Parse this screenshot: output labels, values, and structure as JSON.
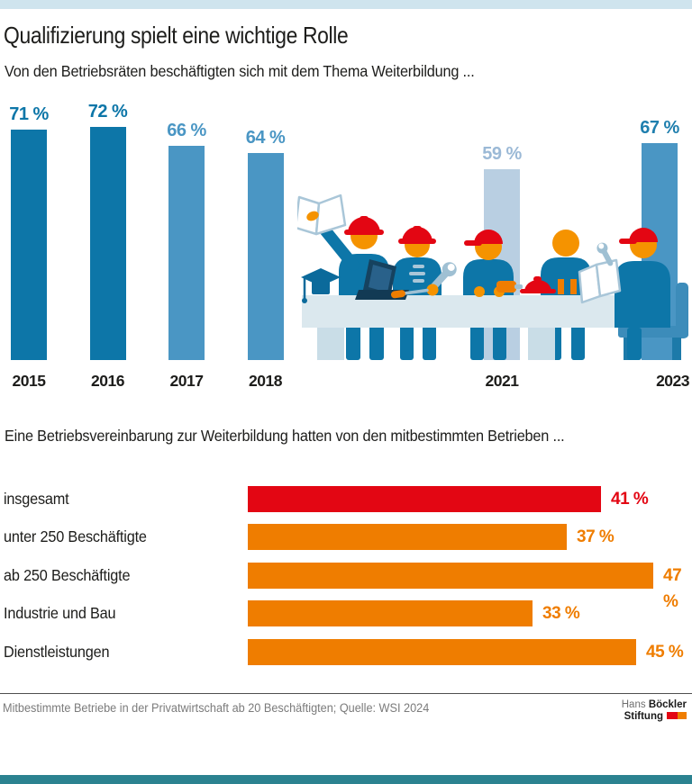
{
  "accent_bars": {
    "top_color": "#cfe4ee",
    "bottom_color": "#2b8290"
  },
  "header": {
    "title": "Qualifizierung spielt eine wichtige Rolle"
  },
  "chart_data": [
    {
      "type": "bar",
      "title": "Von den Betriebsräten beschäftigten sich mit dem Thema Weiterbildung ...",
      "unit": "%",
      "categories": [
        "2015",
        "2016",
        "2017",
        "2018",
        "2021",
        "2023"
      ],
      "values": [
        71,
        72,
        66,
        64,
        59,
        67
      ],
      "value_labels": [
        "71 %",
        "72 %",
        "66 %",
        "64 %",
        "59 %",
        "67 %"
      ],
      "bar_colors": [
        "#0d76a8",
        "#0d76a8",
        "#4a96c4",
        "#4a96c4",
        "#b9cfe2",
        "#4a96c4"
      ],
      "label_colors": [
        "#0d76a8",
        "#0d76a8",
        "#4a96c4",
        "#4a96c4",
        "#9bb9d6",
        "#1f7fae"
      ],
      "ylim": [
        0,
        100
      ],
      "grid": false,
      "layout_note": "timeline x-axis with gaps for missing years 2019, 2020, 2022; value labels above bars"
    },
    {
      "type": "bar",
      "orientation": "horizontal",
      "title": "Eine Betriebsvereinbarung zur Weiterbildung hatten von den mitbestimmten Betrieben ...",
      "unit": "%",
      "categories": [
        "insgesamt",
        "unter 250 Beschäftigte",
        "ab 250 Beschäftigte",
        "Industrie und Bau",
        "Dienstleistungen"
      ],
      "values": [
        41,
        37,
        47,
        33,
        45
      ],
      "value_labels": [
        "41 %",
        "37 %",
        "47 %",
        "33 %",
        "45 %"
      ],
      "bar_colors": [
        "#e30613",
        "#ef7d00",
        "#ef7d00",
        "#ef7d00",
        "#ef7d00"
      ],
      "xlim": [
        0,
        50
      ],
      "grid": false,
      "layout_note": "category labels left of bars, value labels right of bars in bar color"
    }
  ],
  "illustration": {
    "description": "Stylized workers with red safety helmets and caps at a light-blue conference table: one holds up an open book, one has a laptop, others hold a wrench and tools; a graduation cap and a hard hat lie on the table; one worker sits on a chair reading a booklet.",
    "colors": {
      "body_blue": "#0d76a8",
      "chair_blue": "#3c8cba",
      "skin_orange": "#f59300",
      "helmet_red": "#e30613",
      "tool_orange": "#ef7d00",
      "table": "#dbe8ee",
      "table_shade": "#c9dde7",
      "outline_blue": "#a9c6d8",
      "laptop_navy": "#16425f"
    }
  },
  "footer": {
    "note": "Mitbestimmte Betriebe in der Privatwirtschaft ab 20 Beschäftigten; Quelle: WSI 2024",
    "logo": {
      "line1_light": "Hans",
      "line1_bold": "Böckler",
      "line2_bold": "Stiftung",
      "mark_colors": [
        "#e30613",
        "#ef7d00"
      ]
    }
  }
}
